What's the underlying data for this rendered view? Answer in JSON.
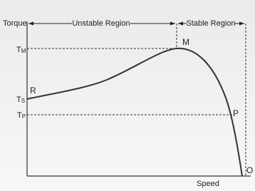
{
  "axes": {
    "y_label": "Torque",
    "x_label": "Speed"
  },
  "regions": [
    "Unstable Region",
    "Stable Region"
  ],
  "levels": [
    {
      "symbol": "T",
      "subscript": "M"
    },
    {
      "symbol": "T",
      "subscript": "S"
    },
    {
      "symbol": "T",
      "subscript": "P"
    }
  ],
  "points": [
    "M",
    "R",
    "P",
    "O"
  ]
}
